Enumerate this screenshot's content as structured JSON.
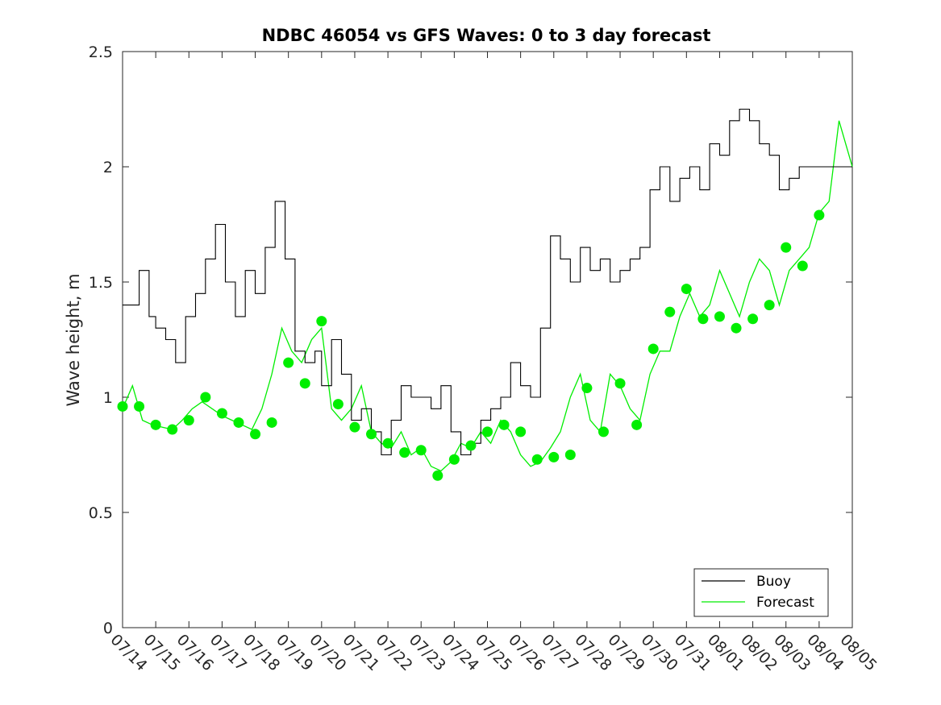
{
  "chart_data": {
    "type": "line",
    "title": "NDBC 46054 vs GFS Waves: 0 to 3 day forecast",
    "xlabel": "",
    "ylabel": "Wave height, m",
    "ylim": [
      0,
      2.5
    ],
    "yticks": [
      "0",
      "0.5",
      "1",
      "1.5",
      "2",
      "2.5"
    ],
    "x_tick_labels": [
      "07/14",
      "07/15",
      "07/16",
      "07/17",
      "07/18",
      "07/19",
      "07/20",
      "07/21",
      "07/22",
      "07/23",
      "07/24",
      "07/25",
      "07/26",
      "07/27",
      "07/28",
      "07/29",
      "07/30",
      "07/31",
      "08/01",
      "08/02",
      "08/03",
      "08/04",
      "08/05"
    ],
    "grid": false,
    "legend_position": "bottom-right",
    "legend": [
      "Buoy",
      "Forecast"
    ],
    "colors": {
      "buoy": "#000000",
      "forecast": "#00ee00",
      "marker": "#00ee00"
    },
    "buoy": {
      "name": "Buoy",
      "x_days": [
        0.0,
        0.5,
        0.8,
        1.0,
        1.3,
        1.6,
        1.9,
        2.2,
        2.5,
        2.8,
        3.1,
        3.4,
        3.7,
        4.0,
        4.3,
        4.6,
        4.9,
        5.2,
        5.5,
        5.8,
        6.0,
        6.3,
        6.6,
        6.9,
        7.2,
        7.5,
        7.8,
        8.1,
        8.4,
        8.7,
        9.0,
        9.3,
        9.6,
        9.9,
        10.2,
        10.5,
        10.8,
        11.1,
        11.4,
        11.7,
        12.0,
        12.3,
        12.6,
        12.9,
        13.2,
        13.5,
        13.8,
        14.1,
        14.4,
        14.7,
        15.0,
        15.3,
        15.6,
        15.9,
        16.2,
        16.5,
        16.8,
        17.1,
        17.4,
        17.7,
        18.0,
        18.3,
        18.6,
        18.9,
        19.2,
        19.5,
        19.8,
        20.1,
        20.4,
        20.7,
        21.0,
        21.3,
        21.6,
        21.8,
        22.0
      ],
      "values": [
        1.4,
        1.55,
        1.35,
        1.3,
        1.25,
        1.15,
        1.35,
        1.45,
        1.6,
        1.75,
        1.5,
        1.35,
        1.55,
        1.45,
        1.65,
        1.85,
        1.6,
        1.2,
        1.15,
        1.2,
        1.05,
        1.25,
        1.1,
        0.9,
        0.95,
        0.85,
        0.75,
        0.9,
        1.05,
        1.0,
        1.0,
        0.95,
        1.05,
        0.85,
        0.75,
        0.8,
        0.9,
        0.95,
        1.0,
        1.15,
        1.05,
        1.0,
        1.3,
        1.7,
        1.6,
        1.5,
        1.65,
        1.55,
        1.6,
        1.5,
        1.55,
        1.6,
        1.65,
        1.9,
        2.0,
        1.85,
        1.95,
        2.0,
        1.9,
        2.1,
        2.05,
        2.2,
        2.25,
        2.2,
        2.1,
        2.05,
        1.9,
        1.95,
        2.0,
        2.0,
        2.0,
        2.0,
        2.0,
        2.0,
        2.0
      ]
    },
    "forecast": {
      "name": "Forecast",
      "x_days": [
        0.0,
        0.3,
        0.6,
        0.9,
        1.2,
        1.5,
        1.8,
        2.1,
        2.4,
        2.7,
        3.0,
        3.3,
        3.6,
        3.9,
        4.2,
        4.5,
        4.8,
        5.1,
        5.4,
        5.7,
        6.0,
        6.3,
        6.6,
        6.9,
        7.2,
        7.5,
        7.8,
        8.1,
        8.4,
        8.7,
        9.0,
        9.3,
        9.6,
        9.9,
        10.2,
        10.5,
        10.8,
        11.1,
        11.4,
        11.7,
        12.0,
        12.3,
        12.6,
        12.9,
        13.2,
        13.5,
        13.8,
        14.1,
        14.4,
        14.7,
        15.0,
        15.3,
        15.6,
        15.9,
        16.2,
        16.5,
        16.8,
        17.1,
        17.4,
        17.7,
        18.0,
        18.3,
        18.6,
        18.9,
        19.2,
        19.5,
        19.8,
        20.1,
        20.4,
        20.7,
        21.0,
        21.3,
        21.6,
        21.9,
        22.0
      ],
      "values": [
        0.95,
        1.05,
        0.9,
        0.88,
        0.87,
        0.86,
        0.9,
        0.95,
        0.98,
        0.95,
        0.92,
        0.9,
        0.88,
        0.86,
        0.95,
        1.1,
        1.3,
        1.2,
        1.15,
        1.25,
        1.3,
        0.95,
        0.9,
        0.95,
        1.05,
        0.85,
        0.8,
        0.78,
        0.85,
        0.75,
        0.78,
        0.7,
        0.68,
        0.72,
        0.8,
        0.78,
        0.85,
        0.8,
        0.9,
        0.85,
        0.75,
        0.7,
        0.72,
        0.78,
        0.85,
        1.0,
        1.1,
        0.9,
        0.85,
        1.1,
        1.05,
        0.95,
        0.9,
        1.1,
        1.2,
        1.2,
        1.35,
        1.45,
        1.35,
        1.4,
        1.55,
        1.45,
        1.35,
        1.5,
        1.6,
        1.55,
        1.4,
        1.55,
        1.6,
        1.65,
        1.8,
        1.85,
        2.2,
        2.05,
        2.0
      ]
    },
    "marker_points": {
      "x_days": [
        0.0,
        0.5,
        1.0,
        1.5,
        2.0,
        2.5,
        3.0,
        3.5,
        4.0,
        4.5,
        5.0,
        5.5,
        6.0,
        6.5,
        7.0,
        7.5,
        8.0,
        8.5,
        9.0,
        9.5,
        10.0,
        10.5,
        11.0,
        11.5,
        12.0,
        12.5,
        13.0,
        13.5,
        14.0,
        14.5,
        15.0,
        15.5,
        16.0,
        16.5,
        17.0,
        17.5,
        18.0,
        18.5,
        19.0,
        19.5,
        20.0,
        20.5,
        21.0
      ],
      "values": [
        0.96,
        0.96,
        0.88,
        0.86,
        0.9,
        1.0,
        0.93,
        0.89,
        0.84,
        0.89,
        1.15,
        1.06,
        1.33,
        0.97,
        0.87,
        0.84,
        0.8,
        0.76,
        0.77,
        0.66,
        0.73,
        0.79,
        0.85,
        0.88,
        0.85,
        0.73,
        0.74,
        0.75,
        1.04,
        0.85,
        1.06,
        0.88,
        1.21,
        1.37,
        1.47,
        1.34,
        1.35,
        1.3,
        1.34,
        1.4,
        1.65,
        1.57,
        1.79
      ]
    }
  }
}
